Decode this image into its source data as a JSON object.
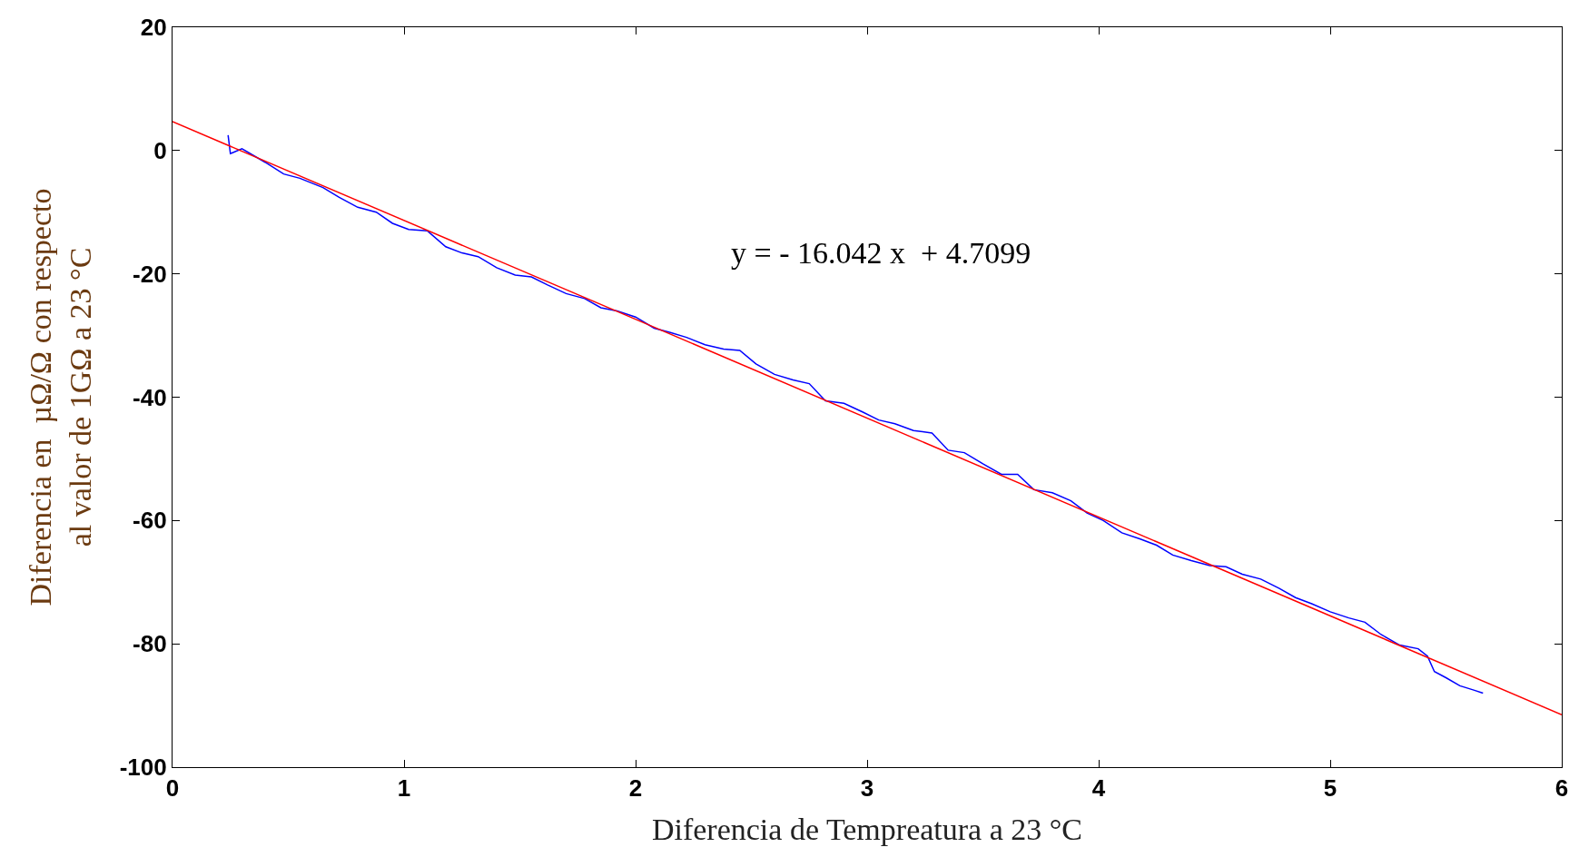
{
  "chart_data": {
    "type": "line",
    "xlabel": "Diferencia de Tempreatura a 23 °C",
    "ylabel": "Diferencia en  µΩ/Ω con respecto\nal valor de 1GΩ a 23 °C",
    "annotations": [
      "y = - 16.042 x  + 4.7099"
    ],
    "xlim": [
      0,
      6
    ],
    "xticks": [
      0,
      1,
      2,
      3,
      4,
      5,
      6
    ],
    "ylim": [
      -100,
      20
    ],
    "yticks": [
      -100,
      -80,
      -60,
      -40,
      -20,
      0,
      20
    ],
    "marker": "none",
    "line_style": "solid",
    "series": [
      {
        "color": "#0000ff",
        "x": [
          0.24,
          0.25,
          0.3,
          0.4,
          0.48,
          0.55,
          0.65,
          0.72,
          0.8,
          0.88,
          0.95,
          1.02,
          1.1,
          1.18,
          1.25,
          1.32,
          1.4,
          1.48,
          1.55,
          1.62,
          1.7,
          1.78,
          1.85,
          1.92,
          2.0,
          2.08,
          2.15,
          2.22,
          2.3,
          2.38,
          2.45,
          2.52,
          2.6,
          2.68,
          2.75,
          2.82,
          2.9,
          2.98,
          3.05,
          3.12,
          3.2,
          3.28,
          3.35,
          3.42,
          3.5,
          3.58,
          3.65,
          3.72,
          3.8,
          3.88,
          3.95,
          4.02,
          4.1,
          4.18,
          4.25,
          4.32,
          4.4,
          4.48,
          4.55,
          4.62,
          4.7,
          4.78,
          4.85,
          4.92,
          5.0,
          5.08,
          5.15,
          5.22,
          5.3,
          5.38,
          5.42,
          5.45,
          5.5,
          5.56,
          5.62,
          5.66
        ],
        "values": [
          2.5,
          -0.5,
          0.3,
          -1.9,
          -3.8,
          -4.5,
          -6.0,
          -7.6,
          -9.2,
          -10.0,
          -11.8,
          -12.8,
          -13.0,
          -15.6,
          -16.6,
          -17.2,
          -19.0,
          -20.2,
          -20.5,
          -21.8,
          -23.2,
          -24.0,
          -25.5,
          -26.0,
          -27.0,
          -28.8,
          -29.5,
          -30.3,
          -31.5,
          -32.2,
          -32.4,
          -34.6,
          -36.3,
          -37.2,
          -37.8,
          -40.6,
          -41.0,
          -42.4,
          -43.7,
          -44.3,
          -45.4,
          -45.8,
          -48.6,
          -49.0,
          -50.8,
          -52.5,
          -52.5,
          -55.0,
          -55.5,
          -56.8,
          -58.8,
          -60.0,
          -62.0,
          -63.0,
          -64.0,
          -65.6,
          -66.5,
          -67.3,
          -67.5,
          -68.7,
          -69.5,
          -71.0,
          -72.5,
          -73.5,
          -74.8,
          -75.8,
          -76.5,
          -78.5,
          -80.2,
          -80.8,
          -82.0,
          -84.5,
          -85.5,
          -86.8,
          -87.5,
          -88.0
        ]
      },
      {
        "color": "#ff0000",
        "x": [
          0,
          6
        ],
        "values": [
          4.7,
          -91.5
        ]
      }
    ]
  }
}
